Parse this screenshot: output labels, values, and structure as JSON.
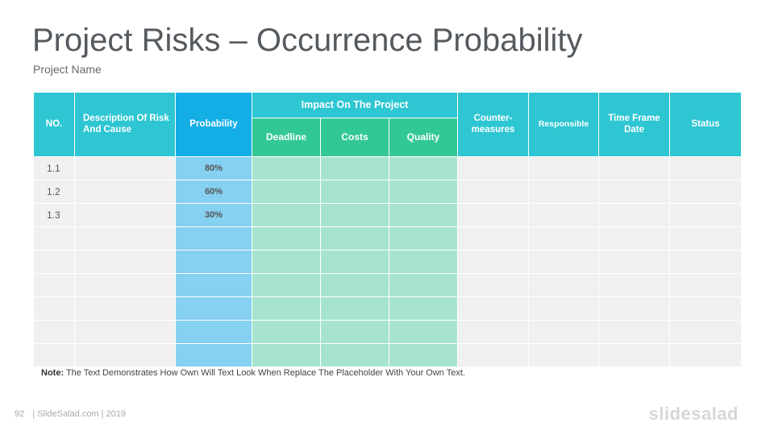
{
  "title": "Project Risks – Occurrence Probability",
  "subtitle": "Project Name",
  "headers": {
    "no": "NO.",
    "description": "Description Of Risk And Cause",
    "probability": "Probability",
    "impact": "Impact On The Project",
    "deadline": "Deadline",
    "costs": "Costs",
    "quality": "Quality",
    "countermeasures": "Counter-measures",
    "responsible": "Responsible",
    "timeframe": "Time Frame Date",
    "status": "Status"
  },
  "rows": [
    {
      "no": "1.1",
      "probability": "80%"
    },
    {
      "no": "1.2",
      "probability": "60%"
    },
    {
      "no": "1.3",
      "probability": "30%"
    },
    {
      "no": "",
      "probability": ""
    },
    {
      "no": "",
      "probability": ""
    },
    {
      "no": "",
      "probability": ""
    },
    {
      "no": "",
      "probability": ""
    },
    {
      "no": "",
      "probability": ""
    },
    {
      "no": "",
      "probability": ""
    }
  ],
  "note": {
    "label": "Note:",
    "text": " The Text Demonstrates How Own Will Text Look When Replace The Placeholder With Your Own Text."
  },
  "footer": {
    "page": "92",
    "source": "| SlideSalad.com | 2019"
  },
  "logo": "slidesalad"
}
